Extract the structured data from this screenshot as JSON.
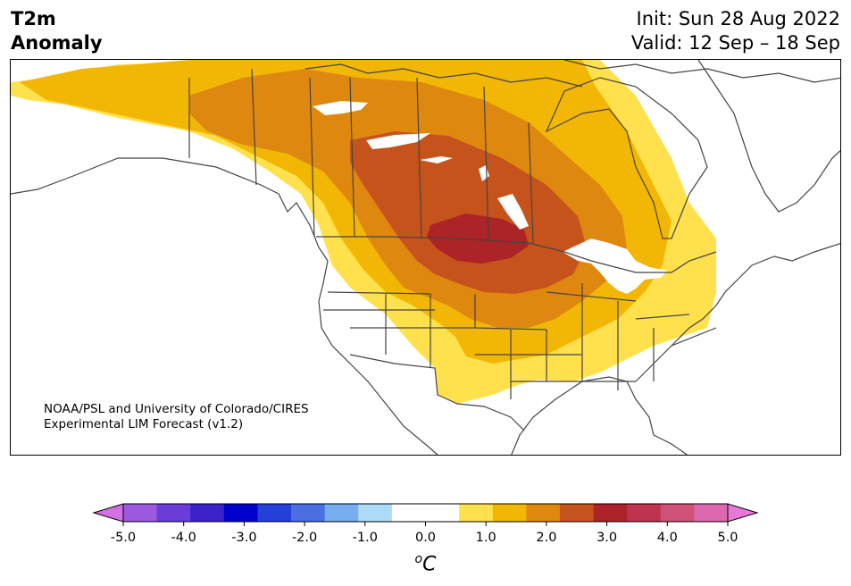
{
  "title": {
    "variable": "T2m",
    "subtitle": "Anomaly",
    "init": "Init: Sun 28 Aug 2022",
    "valid": "Valid: 12 Sep – 18 Sep"
  },
  "credit": {
    "line1": "NOAA/PSL and University of Colorado/CIRES",
    "line2": "Experimental LIM Forecast (v1.2)"
  },
  "colorbar": {
    "ticks": [
      "-5.0",
      "-4.0",
      "-3.0",
      "-2.0",
      "-1.0",
      "0.0",
      "1.0",
      "2.0",
      "3.0",
      "4.0",
      "5.0"
    ],
    "colors": [
      "#9b59e0",
      "#6a3cd8",
      "#3a22c8",
      "#0000cc",
      "#2340d8",
      "#4a6fe0",
      "#76aef0",
      "#aedcf8",
      "#ffffff",
      "#ffffff",
      "#ffe14d",
      "#f2b705",
      "#de8810",
      "#c6531c",
      "#ac2328",
      "#be3450",
      "#cf5279",
      "#de68b0"
    ],
    "extend_low": "#d46fe6",
    "extend_high": "#e879d8",
    "unit_base": "C",
    "unit_sup": "o"
  },
  "map": {
    "region": "North America",
    "anomaly_colors": {
      "0.5-1.0": "#ffe14d",
      "1.0-1.5": "#f2b705",
      "1.5-2.0": "#de8810",
      "2.0-2.5": "#c6531c",
      "2.5-3.0": "#ac2328"
    },
    "coastline_color": "#444444"
  }
}
